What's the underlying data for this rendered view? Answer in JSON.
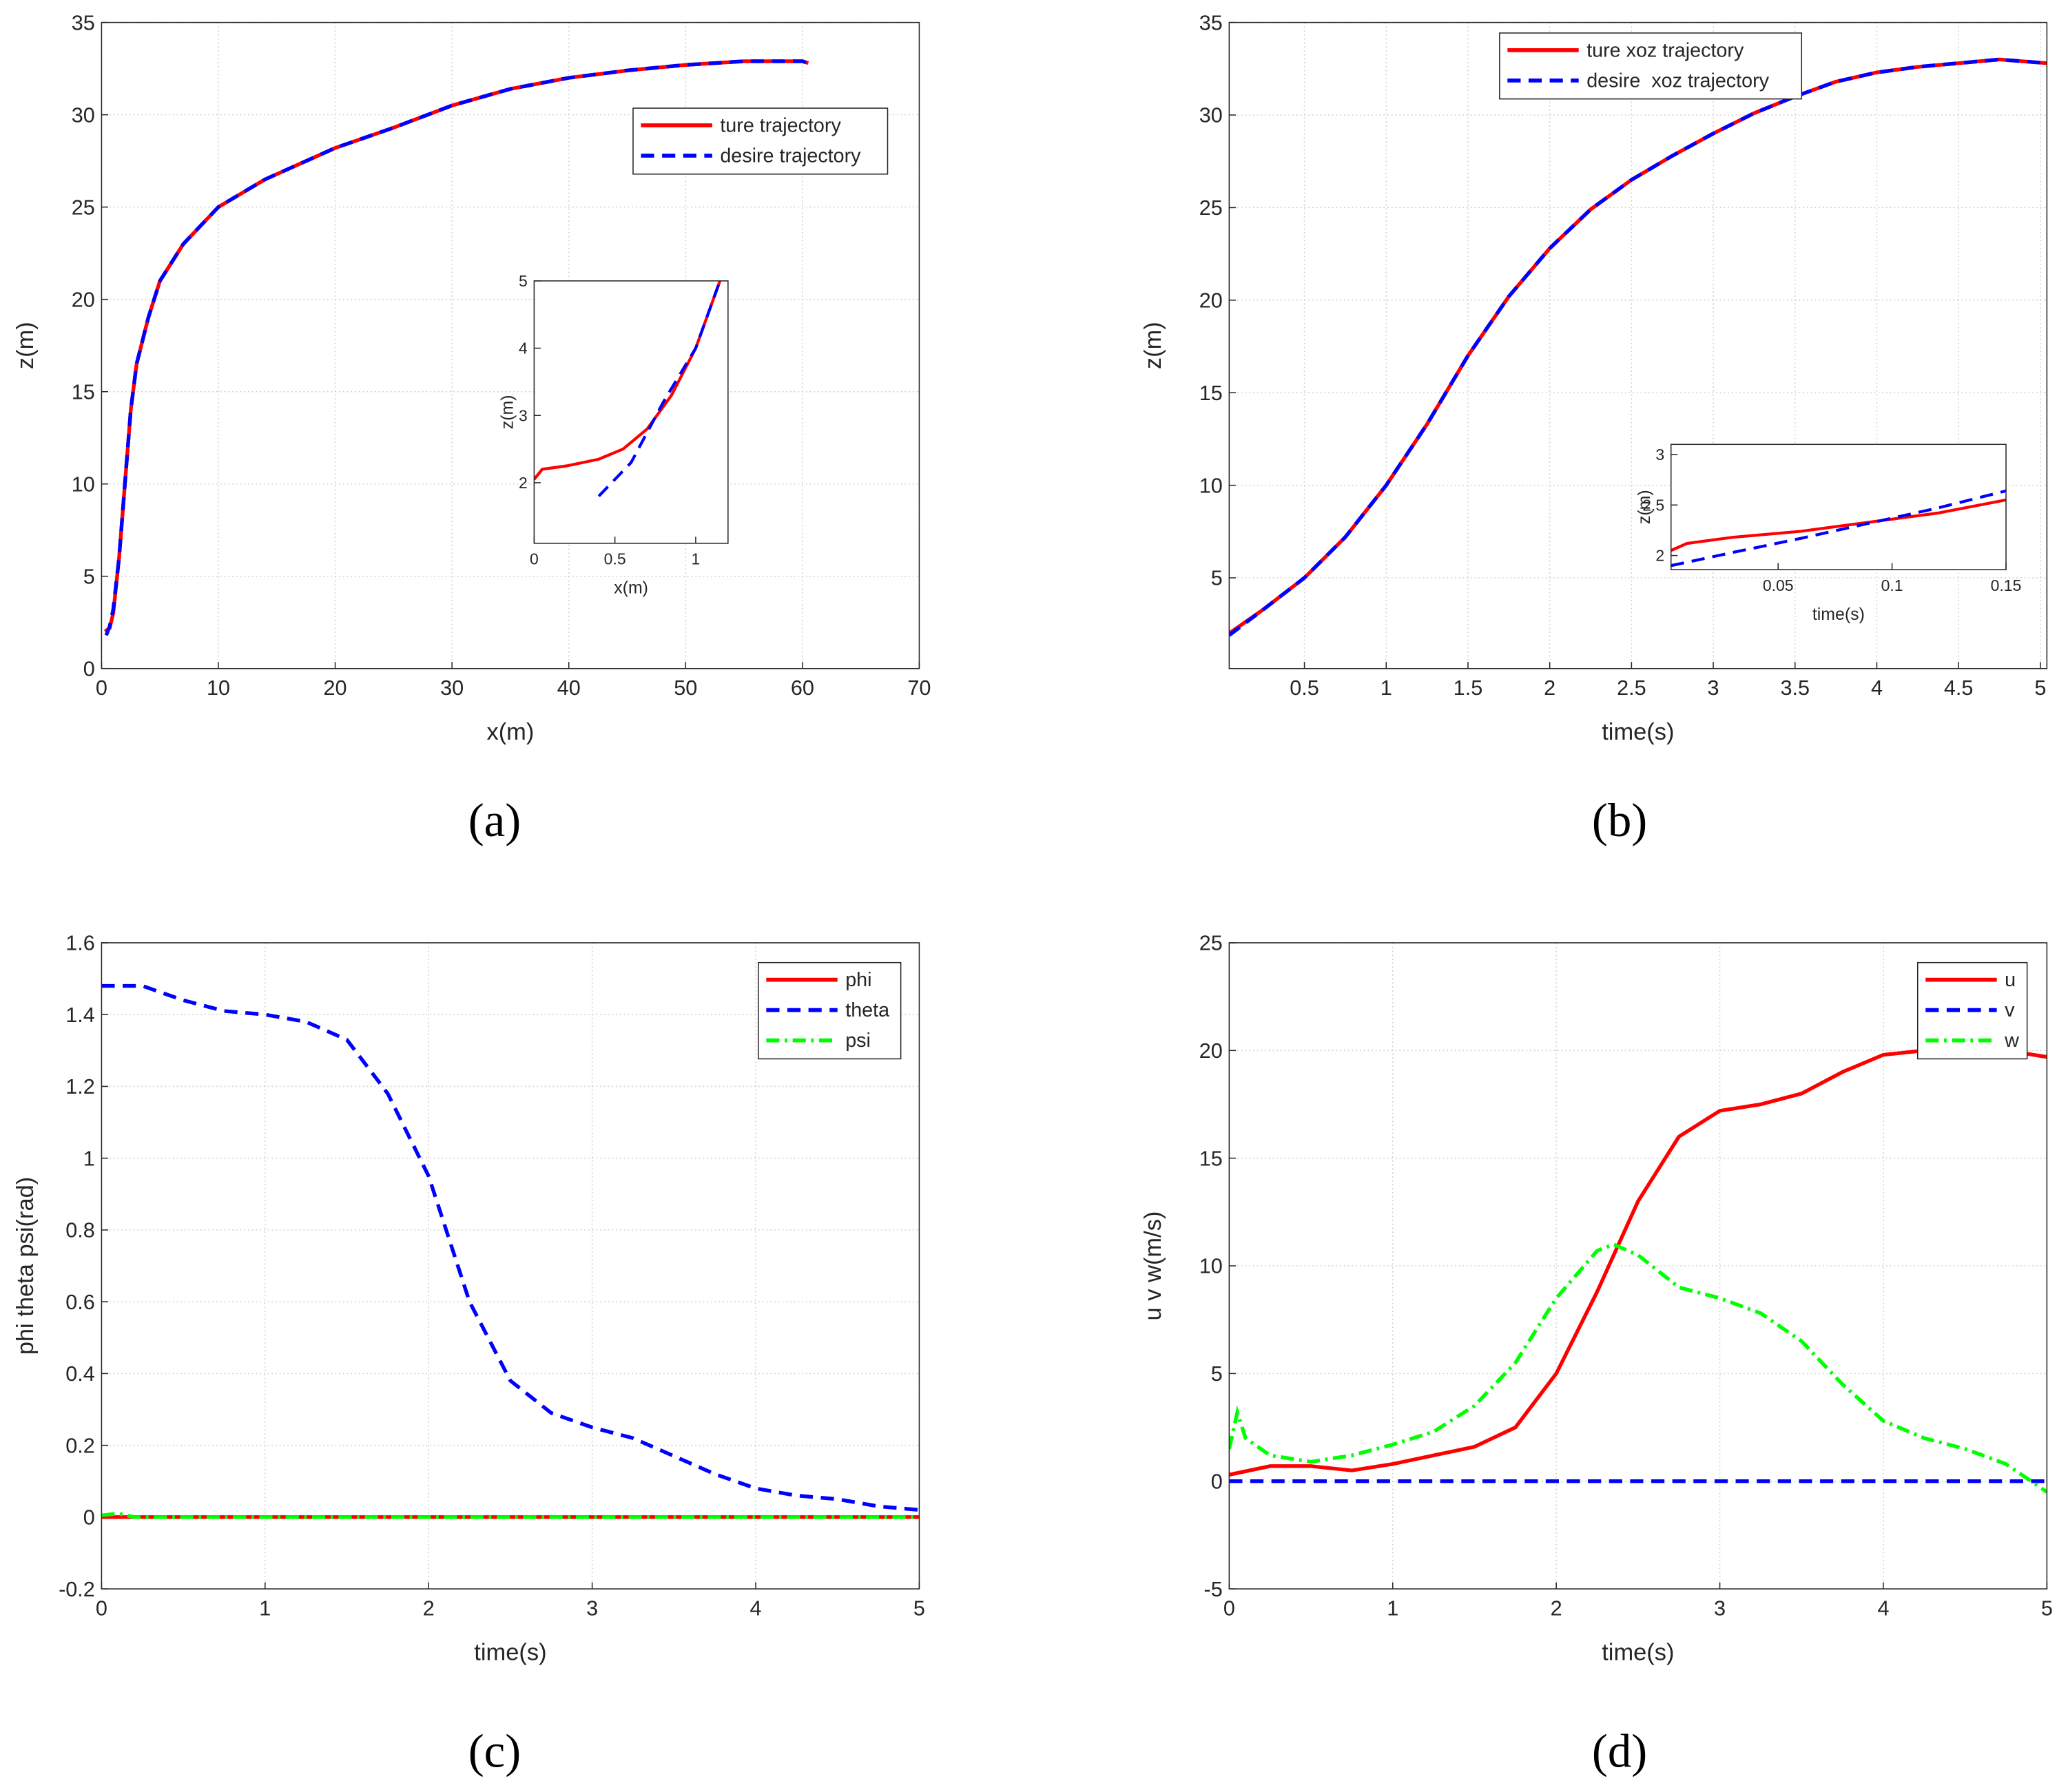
{
  "chart_data": [
    {
      "type": "line",
      "caption": "(a)",
      "xlabel": "x(m)",
      "ylabel": "z(m)",
      "grid": true,
      "xlim": [
        0,
        70
      ],
      "xticks": [
        0,
        10,
        20,
        30,
        40,
        50,
        60,
        70
      ],
      "ylim": [
        0,
        35
      ],
      "yticks": [
        0,
        5,
        10,
        15,
        20,
        25,
        30,
        35
      ],
      "series": [
        {
          "name": "ture trajectory",
          "color": "#ff0000",
          "style": "solid",
          "x": [
            0.3,
            0.7,
            1,
            1.5,
            2,
            2.5,
            3,
            4,
            5,
            7,
            10,
            14,
            20,
            25,
            30,
            35,
            40,
            45,
            50,
            55,
            60,
            60.5
          ],
          "values": [
            2,
            2.2,
            3,
            6,
            10,
            14,
            16.5,
            19,
            21,
            23,
            25,
            26.5,
            28.2,
            29.3,
            30.5,
            31.4,
            32,
            32.4,
            32.7,
            32.9,
            32.9,
            32.8
          ]
        },
        {
          "name": "desire trajectory",
          "color": "#0000ff",
          "style": "dashed",
          "x": [
            0.4,
            0.7,
            1,
            1.5,
            2,
            2.5,
            3,
            4,
            5,
            7,
            10,
            14,
            20,
            25,
            30,
            35,
            40,
            45,
            50,
            55,
            60,
            60.5
          ],
          "values": [
            1.8,
            2.3,
            3.2,
            6,
            10,
            14,
            16.5,
            19,
            21,
            23,
            25,
            26.5,
            28.2,
            29.3,
            30.5,
            31.4,
            32,
            32.4,
            32.7,
            32.9,
            32.9,
            32.8
          ]
        }
      ],
      "inset": {
        "xlabel": "x(m)",
        "ylabel": "z(m)",
        "xlim": [
          0,
          1.2
        ],
        "xticks": [
          0,
          0.5,
          1
        ],
        "ylim": [
          1.1,
          5
        ],
        "yticks": [
          2,
          3,
          4,
          5
        ],
        "series": [
          {
            "color": "#ff0000",
            "style": "solid",
            "x": [
              0,
              0.05,
              0.2,
              0.4,
              0.55,
              0.7,
              0.85,
              1,
              1.15
            ],
            "values": [
              2.05,
              2.2,
              2.25,
              2.35,
              2.5,
              2.8,
              3.3,
              4,
              5
            ]
          },
          {
            "color": "#0000ff",
            "style": "dashed",
            "x": [
              0.4,
              0.6,
              0.8,
              1,
              1.15
            ],
            "values": [
              1.8,
              2.3,
              3.2,
              4,
              5
            ]
          }
        ]
      }
    },
    {
      "type": "line",
      "caption": "(b)",
      "xlabel": "time(s)",
      "ylabel": "z(m)",
      "grid": true,
      "xlim": [
        0.04,
        5.04
      ],
      "xticks": [
        0.5,
        1,
        1.5,
        2,
        2.5,
        3,
        3.5,
        4,
        4.5,
        5
      ],
      "ylim": [
        0.1,
        35
      ],
      "yticks": [
        5,
        10,
        15,
        20,
        25,
        30,
        35
      ],
      "series": [
        {
          "name": "ture xoz trajectory",
          "color": "#ff0000",
          "style": "solid",
          "x": [
            0.04,
            0.25,
            0.5,
            0.75,
            1,
            1.25,
            1.5,
            1.75,
            2,
            2.25,
            2.5,
            2.75,
            3,
            3.25,
            3.5,
            3.75,
            4,
            4.25,
            4.5,
            4.75,
            5.04
          ],
          "values": [
            2,
            3.3,
            5,
            7.2,
            10,
            13.3,
            17,
            20.2,
            22.8,
            24.9,
            26.5,
            27.8,
            29,
            30.1,
            31,
            31.8,
            32.3,
            32.6,
            32.8,
            33,
            32.8
          ]
        },
        {
          "name": "desire  xoz trajectory",
          "color": "#0000ff",
          "style": "dashed",
          "x": [
            0.04,
            0.25,
            0.5,
            0.75,
            1,
            1.25,
            1.5,
            1.75,
            2,
            2.25,
            2.5,
            2.75,
            3,
            3.25,
            3.5,
            3.75,
            4,
            4.25,
            4.5,
            4.75,
            5.04
          ],
          "values": [
            1.9,
            3.3,
            5,
            7.2,
            10,
            13.3,
            17,
            20.2,
            22.8,
            24.9,
            26.5,
            27.8,
            29,
            30.1,
            31,
            31.8,
            32.3,
            32.6,
            32.8,
            33,
            32.8
          ]
        }
      ],
      "inset": {
        "xlabel": "time(s)",
        "ylabel": "z(m)",
        "xlim": [
          0.003,
          0.15
        ],
        "xticks": [
          0.05,
          0.1,
          0.15
        ],
        "ylim": [
          1.86,
          3.1
        ],
        "yticks": [
          2,
          2.5,
          3
        ],
        "series": [
          {
            "color": "#ff0000",
            "style": "solid",
            "x": [
              0.003,
              0.01,
              0.03,
              0.06,
              0.09,
              0.12,
              0.15
            ],
            "values": [
              2.05,
              2.12,
              2.18,
              2.24,
              2.33,
              2.42,
              2.55
            ]
          },
          {
            "color": "#0000ff",
            "style": "dashed",
            "x": [
              0.003,
              0.03,
              0.06,
              0.09,
              0.12,
              0.15
            ],
            "values": [
              1.9,
              2.03,
              2.17,
              2.32,
              2.47,
              2.64
            ]
          }
        ]
      }
    },
    {
      "type": "line",
      "caption": "(c)",
      "xlabel": "time(s)",
      "ylabel": "phi theta psi(rad)",
      "grid": true,
      "xlim": [
        0,
        5
      ],
      "xticks": [
        0,
        1,
        2,
        3,
        4,
        5
      ],
      "ylim": [
        -0.2,
        1.6
      ],
      "yticks": [
        -0.2,
        0,
        0.2,
        0.4,
        0.6,
        0.8,
        1,
        1.2,
        1.4,
        1.6
      ],
      "series": [
        {
          "name": "phi",
          "color": "#ff0000",
          "style": "solid",
          "x": [
            0,
            1,
            2,
            3,
            4,
            5
          ],
          "values": [
            0,
            0,
            0,
            0,
            0,
            0
          ]
        },
        {
          "name": "theta",
          "color": "#0000ff",
          "style": "dashed",
          "x": [
            0,
            0.25,
            0.5,
            0.75,
            1,
            1.25,
            1.5,
            1.75,
            2,
            2.25,
            2.5,
            2.75,
            3,
            3.25,
            3.5,
            3.75,
            4,
            4.25,
            4.5,
            4.75,
            5
          ],
          "values": [
            1.48,
            1.48,
            1.44,
            1.41,
            1.4,
            1.38,
            1.33,
            1.18,
            0.95,
            0.6,
            0.38,
            0.29,
            0.25,
            0.22,
            0.17,
            0.12,
            0.08,
            0.06,
            0.05,
            0.03,
            0.02
          ]
        },
        {
          "name": "psi",
          "color": "#00ff00",
          "style": "dashdot",
          "x": [
            0,
            0.1,
            0.2,
            1,
            2,
            3,
            4,
            5
          ],
          "values": [
            0.005,
            0.01,
            0,
            0,
            0,
            0,
            0,
            0
          ]
        }
      ]
    },
    {
      "type": "line",
      "caption": "(d)",
      "xlabel": "time(s)",
      "ylabel": "u v w(m/s)",
      "grid": true,
      "xlim": [
        0,
        5
      ],
      "xticks": [
        0,
        1,
        2,
        3,
        4,
        5
      ],
      "ylim": [
        -5,
        25
      ],
      "yticks": [
        -5,
        0,
        5,
        10,
        15,
        20,
        25
      ],
      "series": [
        {
          "name": "u",
          "color": "#ff0000",
          "style": "solid",
          "x": [
            0,
            0.25,
            0.5,
            0.75,
            1,
            1.25,
            1.5,
            1.75,
            2,
            2.25,
            2.5,
            2.75,
            3,
            3.25,
            3.5,
            3.75,
            4,
            4.25,
            4.5,
            4.75,
            5
          ],
          "values": [
            0.3,
            0.7,
            0.7,
            0.5,
            0.8,
            1.2,
            1.6,
            2.5,
            5,
            8.8,
            13,
            16,
            17.2,
            17.5,
            18,
            19,
            19.8,
            20,
            20,
            20,
            19.7
          ]
        },
        {
          "name": "v",
          "color": "#0000ff",
          "style": "dashed",
          "x": [
            0,
            1,
            2,
            3,
            4,
            5
          ],
          "values": [
            0,
            0,
            0,
            0,
            0,
            0
          ]
        },
        {
          "name": "w",
          "color": "#00ff00",
          "style": "dashdot",
          "x": [
            0,
            0.05,
            0.1,
            0.25,
            0.5,
            0.75,
            1,
            1.25,
            1.5,
            1.75,
            2,
            2.25,
            2.35,
            2.5,
            2.75,
            3,
            3.25,
            3.5,
            3.75,
            4,
            4.25,
            4.5,
            4.75,
            5
          ],
          "values": [
            1.5,
            3.2,
            2,
            1.2,
            0.9,
            1.2,
            1.7,
            2.3,
            3.5,
            5.5,
            8.5,
            10.7,
            11,
            10.5,
            9,
            8.5,
            7.8,
            6.5,
            4.5,
            2.8,
            2,
            1.5,
            0.8,
            -0.5
          ]
        }
      ]
    }
  ]
}
